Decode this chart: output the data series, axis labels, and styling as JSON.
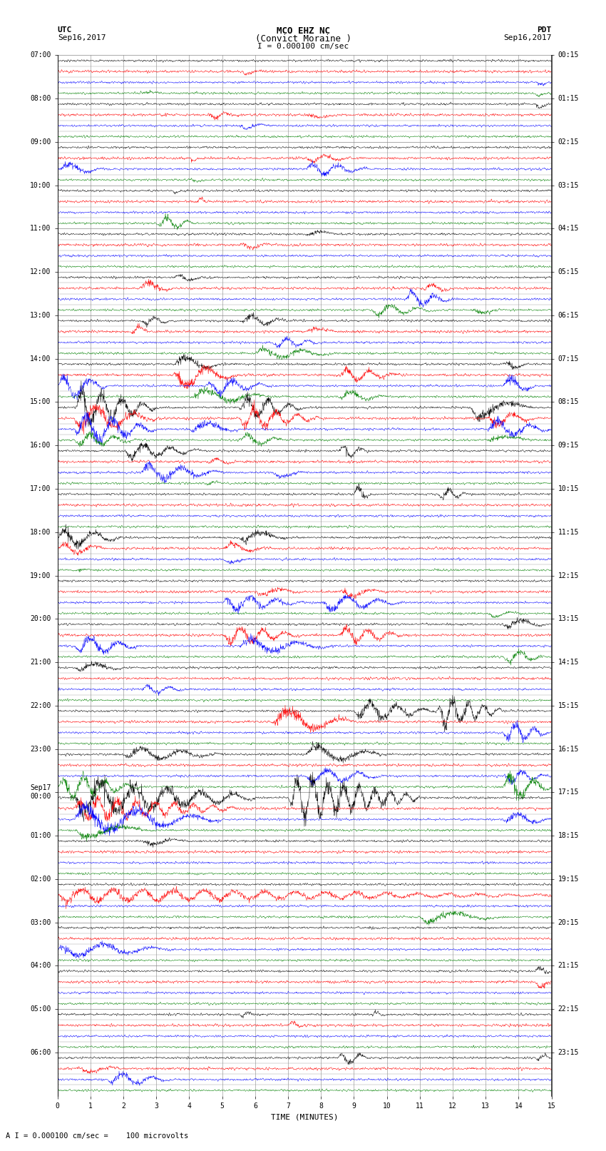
{
  "title_line1": "MCO EHZ NC",
  "title_line2": "(Convict Moraine )",
  "scale_text": "I = 0.000100 cm/sec",
  "left_label1": "UTC",
  "left_label2": "Sep16,2017",
  "right_label1": "PDT",
  "right_label2": "Sep16,2017",
  "xlabel": "TIME (MINUTES)",
  "footnote": "A I = 0.000100 cm/sec =    100 microvolts",
  "utc_hour_labels": [
    "07:00",
    "08:00",
    "09:00",
    "10:00",
    "11:00",
    "12:00",
    "13:00",
    "14:00",
    "15:00",
    "16:00",
    "17:00",
    "18:00",
    "19:00",
    "20:00",
    "21:00",
    "22:00",
    "23:00",
    "Sep17\n00:00",
    "01:00",
    "02:00",
    "03:00",
    "04:00",
    "05:00",
    "06:00"
  ],
  "pdt_hour_labels": [
    "00:15",
    "01:15",
    "02:15",
    "03:15",
    "04:15",
    "05:15",
    "06:15",
    "07:15",
    "08:15",
    "09:15",
    "10:15",
    "11:15",
    "12:15",
    "13:15",
    "14:15",
    "15:15",
    "16:15",
    "17:15",
    "18:15",
    "19:15",
    "20:15",
    "21:15",
    "22:15",
    "23:15"
  ],
  "n_hours": 24,
  "traces_per_hour": 4,
  "n_cols": 15,
  "colors": [
    "black",
    "red",
    "blue",
    "green"
  ],
  "bg_color": "white",
  "grid_color": "#888888",
  "trace_lw": 0.35,
  "noise_amp": 0.045,
  "fig_width": 8.5,
  "fig_height": 16.13,
  "dpi": 100
}
